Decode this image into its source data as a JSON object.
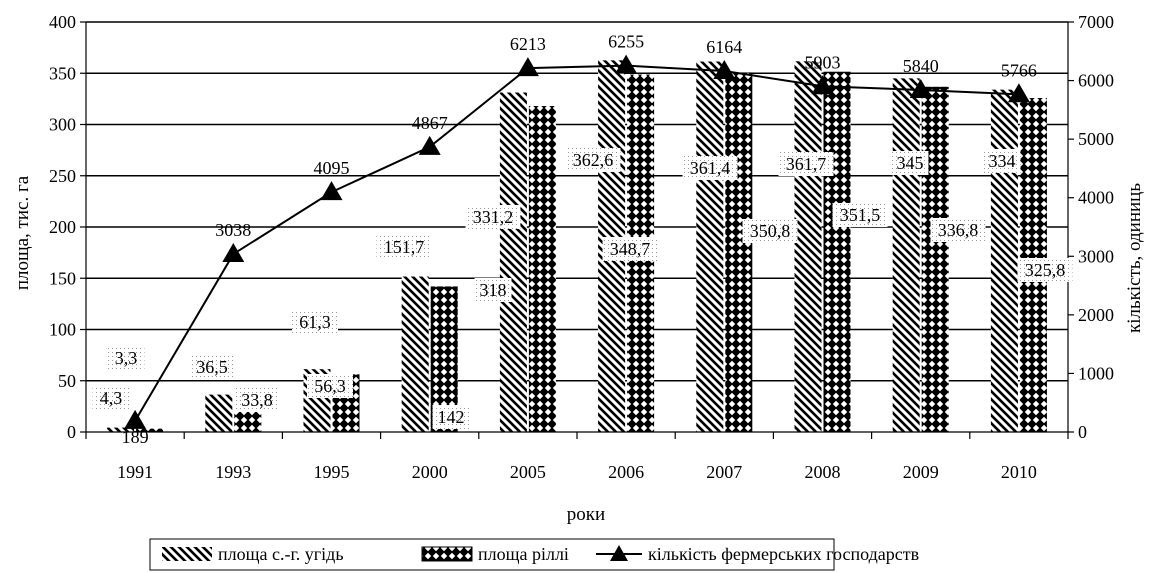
{
  "chart_data": {
    "type": "bar",
    "categories": [
      "1991",
      "1993",
      "1995",
      "2000",
      "2005",
      "2006",
      "2007",
      "2008",
      "2009",
      "2010"
    ],
    "xlabel": "роки",
    "ylabel": "площа, тис. га",
    "y2label": "кількість, одиниць",
    "ylim": [
      0,
      400
    ],
    "y2lim": [
      0,
      7000
    ],
    "yticks": [
      0,
      50,
      100,
      150,
      200,
      250,
      300,
      350,
      400
    ],
    "y2ticks": [
      0,
      1000,
      2000,
      3000,
      4000,
      5000,
      6000,
      7000
    ],
    "grid": true,
    "legend_position": "bottom",
    "series": [
      {
        "name": "площа с.-г. угідь",
        "type": "bar",
        "axis": "left",
        "pattern": "diagonal-stripes",
        "values": [
          4.3,
          36.5,
          61.3,
          151.7,
          331.2,
          362.6,
          361.4,
          361.7,
          345,
          334
        ],
        "labels": [
          "4,3",
          "36,5",
          "61,3",
          "151,7",
          "331,2",
          "362,6",
          "361,4",
          "361,7",
          "345",
          "334"
        ]
      },
      {
        "name": "площа ріллі",
        "type": "bar",
        "axis": "left",
        "pattern": "checker-dots",
        "values": [
          3.3,
          33.8,
          56.3,
          142,
          318,
          348.7,
          350.8,
          351.5,
          336.8,
          325.8
        ],
        "labels": [
          "3,3",
          "33,8",
          "56,3",
          "142",
          "318",
          "348,7",
          "350,8",
          "351,5",
          "336,8",
          "325,8"
        ]
      },
      {
        "name": "кількість фермерських господарств",
        "type": "line",
        "axis": "right",
        "marker": "triangle",
        "values": [
          189,
          3038,
          4095,
          4867,
          6213,
          6255,
          6164,
          5903,
          5840,
          5766
        ],
        "labels": [
          "189",
          "3038",
          "4095",
          "4867",
          "6213",
          "6255",
          "6164",
          "5903",
          "5840",
          "5766"
        ]
      }
    ]
  }
}
